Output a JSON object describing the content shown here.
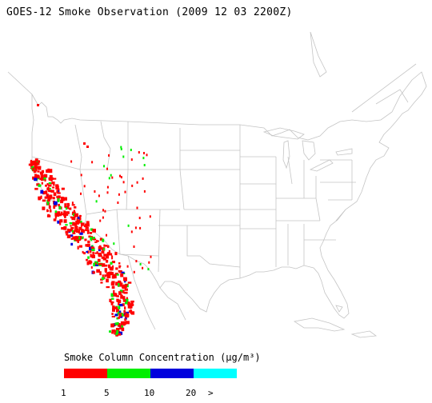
{
  "title": "GOES-12 Smoke Observation (2009 12 03  2200Z)",
  "legend": {
    "title": "Smoke Column Concentration (µg/m³)",
    "bins": [
      {
        "label": "1",
        "color": "#ff0000"
      },
      {
        "label": "5",
        "color": "#00ee00"
      },
      {
        "label": "10",
        "color": "#0000dd"
      },
      {
        "label": "20",
        "color": "#00ffff"
      }
    ],
    "overflow_label": ">"
  },
  "map": {
    "region": "contiguous-united-states",
    "boundary_color": "#c8c8c8",
    "smoke_colors": {
      "low": "#ff0000",
      "mid": "#00ee00",
      "high": "#0000dd",
      "max": "#00ffff"
    }
  }
}
